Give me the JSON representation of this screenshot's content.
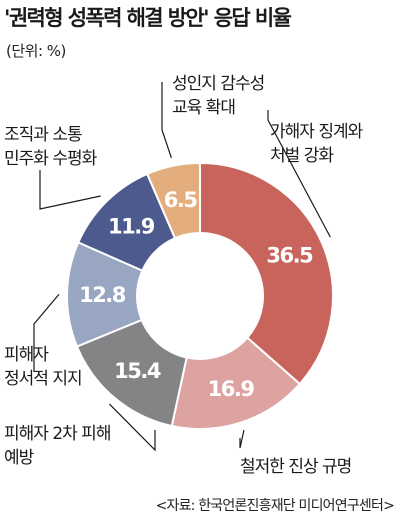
{
  "title": "'권력형 성폭력 해결 방안' 응답 비율",
  "unit": "(단위: %)",
  "source": "<자료: 한국언론진흥재단 미디어연구센터>",
  "chart_data": {
    "type": "pie",
    "title": "'권력형 성폭력 해결 방안' 응답 비율",
    "unit": "%",
    "categories": [
      "가해자 징계와 처벌 강화",
      "철저한 진상 규명",
      "피해자 2차 피해 예방",
      "피해자 정서적 지지",
      "조직과 소통 민주화 수평화",
      "성인지 감수성 교육 확대"
    ],
    "values": [
      36.5,
      16.9,
      15.4,
      12.8,
      11.9,
      6.5
    ],
    "value_labels": [
      "36.5",
      "16.9",
      "15.4",
      "12.8",
      "11.9",
      "6.5"
    ],
    "label_lines": [
      [
        "가해자 징계와",
        "처벌 강화"
      ],
      [
        "철저한 진상 규명"
      ],
      [
        "피해자 2차 피해",
        "예방"
      ],
      [
        "피해자",
        "정서적 지지"
      ],
      [
        "조직과 소통",
        "민주화 수평화"
      ],
      [
        "성인지 감수성",
        "교육 확대"
      ]
    ],
    "colors": [
      "#c8645b",
      "#dca3a0",
      "#848486",
      "#99a6c2",
      "#4c5a8d",
      "#e3ad7d"
    ],
    "donut": true
  }
}
